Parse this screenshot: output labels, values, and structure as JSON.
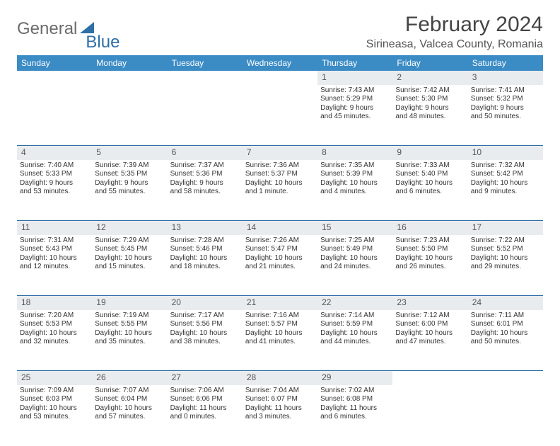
{
  "logo": {
    "text1": "General",
    "text2": "Blue"
  },
  "title": "February 2024",
  "location": "Sirineasa, Valcea County, Romania",
  "colors": {
    "header_bg": "#3b8bc4",
    "header_text": "#ffffff",
    "daynum_bg": "#e9ecef",
    "rule": "#2f6fa7",
    "body_text": "#333333",
    "title_text": "#444444",
    "logo_gray": "#6b6b6b",
    "logo_blue": "#2f6fa7"
  },
  "weekdays": [
    "Sunday",
    "Monday",
    "Tuesday",
    "Wednesday",
    "Thursday",
    "Friday",
    "Saturday"
  ],
  "weeks": [
    {
      "nums": [
        "",
        "",
        "",
        "",
        "1",
        "2",
        "3"
      ],
      "cells": [
        null,
        null,
        null,
        null,
        {
          "sunrise": "Sunrise: 7:43 AM",
          "sunset": "Sunset: 5:29 PM",
          "day1": "Daylight: 9 hours",
          "day2": "and 45 minutes."
        },
        {
          "sunrise": "Sunrise: 7:42 AM",
          "sunset": "Sunset: 5:30 PM",
          "day1": "Daylight: 9 hours",
          "day2": "and 48 minutes."
        },
        {
          "sunrise": "Sunrise: 7:41 AM",
          "sunset": "Sunset: 5:32 PM",
          "day1": "Daylight: 9 hours",
          "day2": "and 50 minutes."
        }
      ]
    },
    {
      "nums": [
        "4",
        "5",
        "6",
        "7",
        "8",
        "9",
        "10"
      ],
      "cells": [
        {
          "sunrise": "Sunrise: 7:40 AM",
          "sunset": "Sunset: 5:33 PM",
          "day1": "Daylight: 9 hours",
          "day2": "and 53 minutes."
        },
        {
          "sunrise": "Sunrise: 7:39 AM",
          "sunset": "Sunset: 5:35 PM",
          "day1": "Daylight: 9 hours",
          "day2": "and 55 minutes."
        },
        {
          "sunrise": "Sunrise: 7:37 AM",
          "sunset": "Sunset: 5:36 PM",
          "day1": "Daylight: 9 hours",
          "day2": "and 58 minutes."
        },
        {
          "sunrise": "Sunrise: 7:36 AM",
          "sunset": "Sunset: 5:37 PM",
          "day1": "Daylight: 10 hours",
          "day2": "and 1 minute."
        },
        {
          "sunrise": "Sunrise: 7:35 AM",
          "sunset": "Sunset: 5:39 PM",
          "day1": "Daylight: 10 hours",
          "day2": "and 4 minutes."
        },
        {
          "sunrise": "Sunrise: 7:33 AM",
          "sunset": "Sunset: 5:40 PM",
          "day1": "Daylight: 10 hours",
          "day2": "and 6 minutes."
        },
        {
          "sunrise": "Sunrise: 7:32 AM",
          "sunset": "Sunset: 5:42 PM",
          "day1": "Daylight: 10 hours",
          "day2": "and 9 minutes."
        }
      ]
    },
    {
      "nums": [
        "11",
        "12",
        "13",
        "14",
        "15",
        "16",
        "17"
      ],
      "cells": [
        {
          "sunrise": "Sunrise: 7:31 AM",
          "sunset": "Sunset: 5:43 PM",
          "day1": "Daylight: 10 hours",
          "day2": "and 12 minutes."
        },
        {
          "sunrise": "Sunrise: 7:29 AM",
          "sunset": "Sunset: 5:45 PM",
          "day1": "Daylight: 10 hours",
          "day2": "and 15 minutes."
        },
        {
          "sunrise": "Sunrise: 7:28 AM",
          "sunset": "Sunset: 5:46 PM",
          "day1": "Daylight: 10 hours",
          "day2": "and 18 minutes."
        },
        {
          "sunrise": "Sunrise: 7:26 AM",
          "sunset": "Sunset: 5:47 PM",
          "day1": "Daylight: 10 hours",
          "day2": "and 21 minutes."
        },
        {
          "sunrise": "Sunrise: 7:25 AM",
          "sunset": "Sunset: 5:49 PM",
          "day1": "Daylight: 10 hours",
          "day2": "and 24 minutes."
        },
        {
          "sunrise": "Sunrise: 7:23 AM",
          "sunset": "Sunset: 5:50 PM",
          "day1": "Daylight: 10 hours",
          "day2": "and 26 minutes."
        },
        {
          "sunrise": "Sunrise: 7:22 AM",
          "sunset": "Sunset: 5:52 PM",
          "day1": "Daylight: 10 hours",
          "day2": "and 29 minutes."
        }
      ]
    },
    {
      "nums": [
        "18",
        "19",
        "20",
        "21",
        "22",
        "23",
        "24"
      ],
      "cells": [
        {
          "sunrise": "Sunrise: 7:20 AM",
          "sunset": "Sunset: 5:53 PM",
          "day1": "Daylight: 10 hours",
          "day2": "and 32 minutes."
        },
        {
          "sunrise": "Sunrise: 7:19 AM",
          "sunset": "Sunset: 5:55 PM",
          "day1": "Daylight: 10 hours",
          "day2": "and 35 minutes."
        },
        {
          "sunrise": "Sunrise: 7:17 AM",
          "sunset": "Sunset: 5:56 PM",
          "day1": "Daylight: 10 hours",
          "day2": "and 38 minutes."
        },
        {
          "sunrise": "Sunrise: 7:16 AM",
          "sunset": "Sunset: 5:57 PM",
          "day1": "Daylight: 10 hours",
          "day2": "and 41 minutes."
        },
        {
          "sunrise": "Sunrise: 7:14 AM",
          "sunset": "Sunset: 5:59 PM",
          "day1": "Daylight: 10 hours",
          "day2": "and 44 minutes."
        },
        {
          "sunrise": "Sunrise: 7:12 AM",
          "sunset": "Sunset: 6:00 PM",
          "day1": "Daylight: 10 hours",
          "day2": "and 47 minutes."
        },
        {
          "sunrise": "Sunrise: 7:11 AM",
          "sunset": "Sunset: 6:01 PM",
          "day1": "Daylight: 10 hours",
          "day2": "and 50 minutes."
        }
      ]
    },
    {
      "nums": [
        "25",
        "26",
        "27",
        "28",
        "29",
        "",
        ""
      ],
      "cells": [
        {
          "sunrise": "Sunrise: 7:09 AM",
          "sunset": "Sunset: 6:03 PM",
          "day1": "Daylight: 10 hours",
          "day2": "and 53 minutes."
        },
        {
          "sunrise": "Sunrise: 7:07 AM",
          "sunset": "Sunset: 6:04 PM",
          "day1": "Daylight: 10 hours",
          "day2": "and 57 minutes."
        },
        {
          "sunrise": "Sunrise: 7:06 AM",
          "sunset": "Sunset: 6:06 PM",
          "day1": "Daylight: 11 hours",
          "day2": "and 0 minutes."
        },
        {
          "sunrise": "Sunrise: 7:04 AM",
          "sunset": "Sunset: 6:07 PM",
          "day1": "Daylight: 11 hours",
          "day2": "and 3 minutes."
        },
        {
          "sunrise": "Sunrise: 7:02 AM",
          "sunset": "Sunset: 6:08 PM",
          "day1": "Daylight: 11 hours",
          "day2": "and 6 minutes."
        },
        null,
        null
      ]
    }
  ]
}
